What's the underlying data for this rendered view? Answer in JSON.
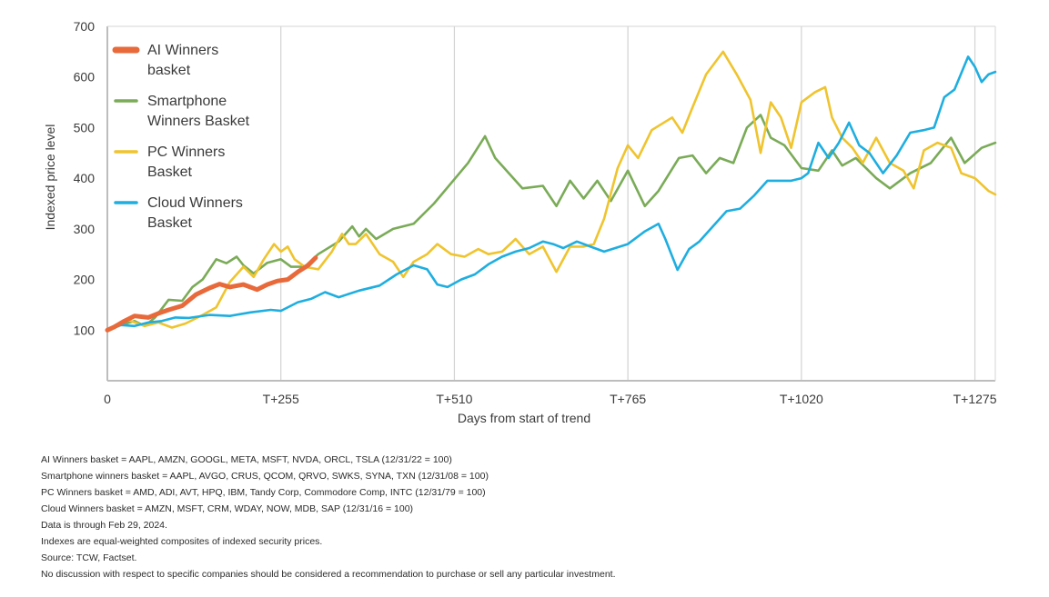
{
  "chart_data": {
    "type": "line",
    "title": "",
    "xlabel": "Days from start of trend",
    "ylabel": "Indexed price level",
    "xlim": [
      0,
      1305
    ],
    "ylim": [
      0,
      700
    ],
    "grid": {
      "vertical": true,
      "horizontal": false
    },
    "x_ticks": [
      {
        "value": 0,
        "label": "0"
      },
      {
        "value": 255,
        "label": "T+255"
      },
      {
        "value": 510,
        "label": "T+510"
      },
      {
        "value": 765,
        "label": "T+765"
      },
      {
        "value": 1020,
        "label": "T+1020"
      },
      {
        "value": 1275,
        "label": "T+1275"
      }
    ],
    "y_ticks": [
      100,
      200,
      300,
      400,
      500,
      600,
      700
    ],
    "legend_position": "top-left",
    "series": [
      {
        "name": "AI Winners basket",
        "legend_lines": [
          "AI Winners",
          "basket"
        ],
        "color": "#e8693a",
        "thick": true,
        "points": [
          [
            0,
            100
          ],
          [
            10,
            106
          ],
          [
            25,
            118
          ],
          [
            40,
            128
          ],
          [
            60,
            125
          ],
          [
            75,
            133
          ],
          [
            90,
            140
          ],
          [
            110,
            148
          ],
          [
            130,
            170
          ],
          [
            150,
            183
          ],
          [
            165,
            191
          ],
          [
            180,
            185
          ],
          [
            200,
            190
          ],
          [
            220,
            180
          ],
          [
            235,
            190
          ],
          [
            250,
            197
          ],
          [
            265,
            200
          ],
          [
            280,
            215
          ],
          [
            295,
            228
          ],
          [
            306,
            243
          ]
        ]
      },
      {
        "name": "Smartphone Winners Basket",
        "legend_lines": [
          "Smartphone",
          "Winners Basket"
        ],
        "color": "#7aab57",
        "thick": false,
        "points": [
          [
            0,
            100
          ],
          [
            20,
            110
          ],
          [
            40,
            118
          ],
          [
            55,
            108
          ],
          [
            70,
            125
          ],
          [
            90,
            160
          ],
          [
            110,
            158
          ],
          [
            125,
            185
          ],
          [
            140,
            200
          ],
          [
            160,
            240
          ],
          [
            175,
            232
          ],
          [
            190,
            245
          ],
          [
            200,
            228
          ],
          [
            215,
            212
          ],
          [
            235,
            233
          ],
          [
            255,
            240
          ],
          [
            270,
            225
          ],
          [
            290,
            225
          ],
          [
            310,
            250
          ],
          [
            340,
            275
          ],
          [
            360,
            305
          ],
          [
            370,
            285
          ],
          [
            380,
            300
          ],
          [
            395,
            280
          ],
          [
            420,
            300
          ],
          [
            450,
            310
          ],
          [
            480,
            350
          ],
          [
            510,
            398
          ],
          [
            530,
            430
          ],
          [
            555,
            483
          ],
          [
            570,
            440
          ],
          [
            590,
            410
          ],
          [
            610,
            380
          ],
          [
            640,
            385
          ],
          [
            660,
            345
          ],
          [
            680,
            395
          ],
          [
            700,
            360
          ],
          [
            720,
            395
          ],
          [
            740,
            355
          ],
          [
            765,
            415
          ],
          [
            790,
            345
          ],
          [
            810,
            375
          ],
          [
            840,
            440
          ],
          [
            860,
            445
          ],
          [
            880,
            410
          ],
          [
            900,
            440
          ],
          [
            920,
            430
          ],
          [
            940,
            500
          ],
          [
            960,
            525
          ],
          [
            975,
            480
          ],
          [
            995,
            465
          ],
          [
            1020,
            420
          ],
          [
            1045,
            415
          ],
          [
            1065,
            455
          ],
          [
            1080,
            425
          ],
          [
            1100,
            440
          ],
          [
            1130,
            400
          ],
          [
            1150,
            380
          ],
          [
            1180,
            410
          ],
          [
            1210,
            430
          ],
          [
            1240,
            480
          ],
          [
            1260,
            430
          ],
          [
            1285,
            460
          ],
          [
            1305,
            470
          ]
        ]
      },
      {
        "name": "PC Winners Basket",
        "legend_lines": [
          "PC Winners",
          "Basket"
        ],
        "color": "#efc42e",
        "thick": false,
        "points": [
          [
            0,
            100
          ],
          [
            15,
            112
          ],
          [
            30,
            120
          ],
          [
            55,
            108
          ],
          [
            75,
            115
          ],
          [
            95,
            105
          ],
          [
            115,
            113
          ],
          [
            140,
            130
          ],
          [
            160,
            145
          ],
          [
            180,
            195
          ],
          [
            200,
            225
          ],
          [
            215,
            205
          ],
          [
            230,
            240
          ],
          [
            245,
            270
          ],
          [
            255,
            255
          ],
          [
            265,
            265
          ],
          [
            275,
            240
          ],
          [
            290,
            225
          ],
          [
            310,
            220
          ],
          [
            330,
            255
          ],
          [
            345,
            290
          ],
          [
            355,
            270
          ],
          [
            365,
            270
          ],
          [
            380,
            290
          ],
          [
            400,
            250
          ],
          [
            420,
            235
          ],
          [
            435,
            205
          ],
          [
            450,
            235
          ],
          [
            470,
            250
          ],
          [
            485,
            270
          ],
          [
            505,
            250
          ],
          [
            525,
            245
          ],
          [
            545,
            260
          ],
          [
            560,
            250
          ],
          [
            580,
            255
          ],
          [
            600,
            280
          ],
          [
            620,
            250
          ],
          [
            640,
            265
          ],
          [
            660,
            215
          ],
          [
            680,
            265
          ],
          [
            700,
            265
          ],
          [
            715,
            270
          ],
          [
            730,
            320
          ],
          [
            750,
            420
          ],
          [
            765,
            465
          ],
          [
            780,
            440
          ],
          [
            800,
            495
          ],
          [
            830,
            520
          ],
          [
            845,
            490
          ],
          [
            860,
            540
          ],
          [
            880,
            605
          ],
          [
            905,
            650
          ],
          [
            925,
            605
          ],
          [
            945,
            555
          ],
          [
            960,
            450
          ],
          [
            975,
            550
          ],
          [
            990,
            520
          ],
          [
            1005,
            460
          ],
          [
            1020,
            550
          ],
          [
            1040,
            570
          ],
          [
            1055,
            580
          ],
          [
            1065,
            520
          ],
          [
            1080,
            480
          ],
          [
            1095,
            460
          ],
          [
            1110,
            430
          ],
          [
            1130,
            480
          ],
          [
            1150,
            430
          ],
          [
            1170,
            415
          ],
          [
            1185,
            380
          ],
          [
            1200,
            455
          ],
          [
            1220,
            470
          ],
          [
            1240,
            460
          ],
          [
            1255,
            410
          ],
          [
            1275,
            400
          ],
          [
            1295,
            375
          ],
          [
            1305,
            368
          ]
        ]
      },
      {
        "name": "Cloud Winners Basket",
        "legend_lines": [
          "Cloud Winners",
          "Basket"
        ],
        "color": "#1eaee0",
        "thick": false,
        "points": [
          [
            0,
            100
          ],
          [
            20,
            110
          ],
          [
            40,
            108
          ],
          [
            60,
            115
          ],
          [
            80,
            118
          ],
          [
            100,
            125
          ],
          [
            120,
            124
          ],
          [
            150,
            130
          ],
          [
            180,
            128
          ],
          [
            210,
            135
          ],
          [
            240,
            140
          ],
          [
            255,
            138
          ],
          [
            280,
            155
          ],
          [
            300,
            162
          ],
          [
            320,
            175
          ],
          [
            340,
            165
          ],
          [
            370,
            178
          ],
          [
            400,
            188
          ],
          [
            425,
            210
          ],
          [
            450,
            228
          ],
          [
            470,
            220
          ],
          [
            485,
            190
          ],
          [
            500,
            185
          ],
          [
            520,
            200
          ],
          [
            540,
            210
          ],
          [
            560,
            230
          ],
          [
            580,
            245
          ],
          [
            600,
            255
          ],
          [
            620,
            262
          ],
          [
            640,
            275
          ],
          [
            655,
            270
          ],
          [
            670,
            262
          ],
          [
            690,
            275
          ],
          [
            710,
            265
          ],
          [
            730,
            255
          ],
          [
            765,
            270
          ],
          [
            790,
            295
          ],
          [
            810,
            310
          ],
          [
            820,
            280
          ],
          [
            838,
            219
          ],
          [
            855,
            260
          ],
          [
            870,
            275
          ],
          [
            890,
            305
          ],
          [
            910,
            335
          ],
          [
            930,
            340
          ],
          [
            950,
            365
          ],
          [
            970,
            395
          ],
          [
            985,
            395
          ],
          [
            1005,
            395
          ],
          [
            1020,
            400
          ],
          [
            1030,
            410
          ],
          [
            1045,
            470
          ],
          [
            1060,
            440
          ],
          [
            1075,
            470
          ],
          [
            1090,
            510
          ],
          [
            1105,
            465
          ],
          [
            1120,
            450
          ],
          [
            1140,
            410
          ],
          [
            1160,
            445
          ],
          [
            1180,
            490
          ],
          [
            1200,
            495
          ],
          [
            1215,
            500
          ],
          [
            1230,
            560
          ],
          [
            1245,
            575
          ],
          [
            1265,
            640
          ],
          [
            1275,
            620
          ],
          [
            1285,
            590
          ],
          [
            1295,
            605
          ],
          [
            1305,
            610
          ]
        ]
      }
    ]
  },
  "footnotes": [
    "AI Winners basket = AAPL, AMZN, GOOGL, META, MSFT, NVDA, ORCL, TSLA (12/31/22 = 100)",
    "Smartphone winners basket = AAPL, AVGO, CRUS, QCOM, QRVO, SWKS, SYNA, TXN (12/31/08 = 100)",
    "PC Winners basket = AMD, ADI, AVT, HPQ, IBM, Tandy Corp, Commodore Comp, INTC (12/31/79 = 100)",
    "Cloud Winners basket = AMZN, MSFT, CRM, WDAY, NOW, MDB, SAP (12/31/16 = 100)",
    "Data is through Feb 29, 2024.",
    "Indexes are equal-weighted composites of indexed security prices.",
    "Source: TCW, Factset.",
    "No discussion with respect to specific companies should be considered a recommendation to purchase or sell any particular investment."
  ]
}
